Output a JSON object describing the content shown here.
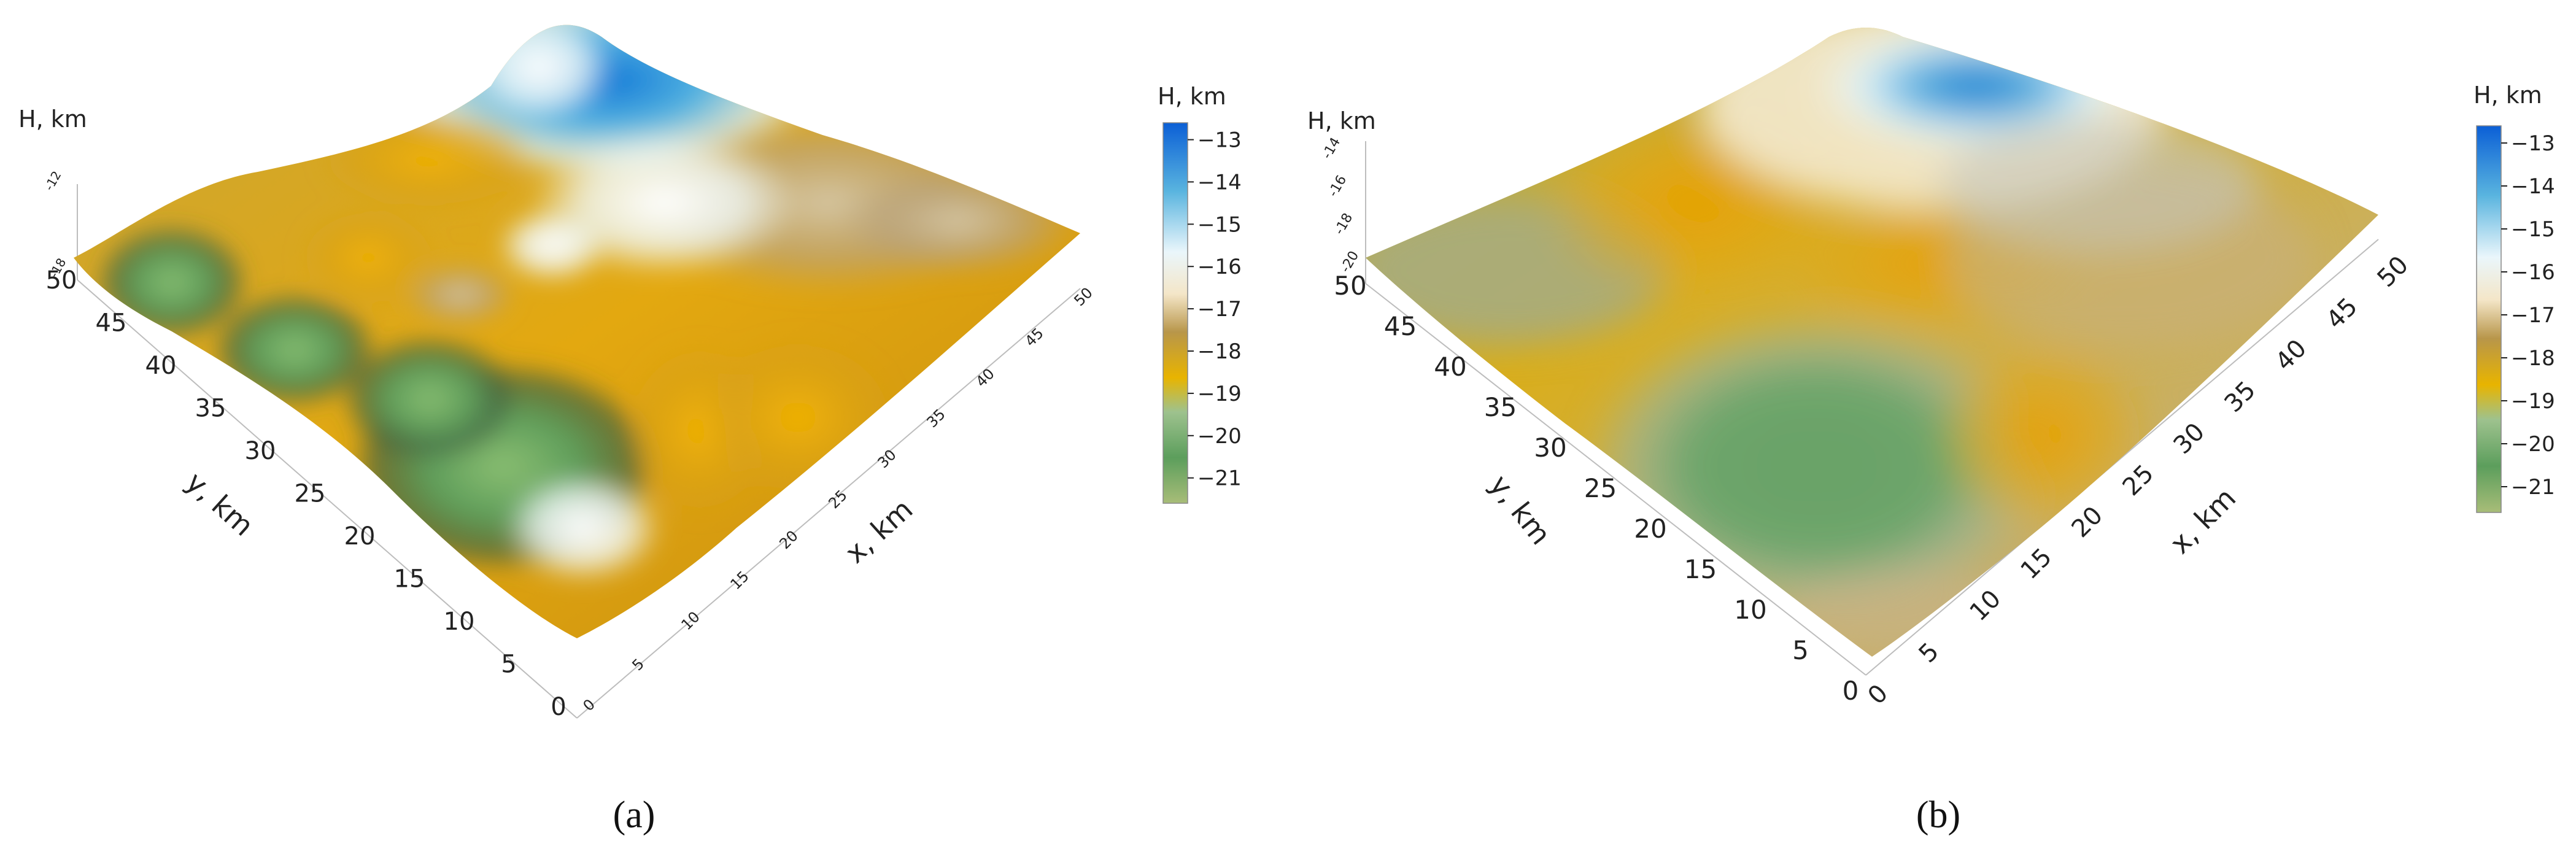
{
  "chart_data": [
    {
      "type": "surface",
      "panel_label": "(a)",
      "zlabel": "H, km",
      "xlabel": "x, km",
      "ylabel": "y, km",
      "x_ticks": [
        "0",
        "5",
        "10",
        "15",
        "20",
        "25",
        "30",
        "35",
        "40",
        "45",
        "50"
      ],
      "y_ticks": [
        "0",
        "5",
        "10",
        "15",
        "20",
        "25",
        "30",
        "35",
        "40",
        "45",
        "50"
      ],
      "z_ticks": [
        "-18",
        "-12"
      ],
      "colorbar": {
        "label": "H, km",
        "ticks": [
          "-13",
          "-14",
          "-15",
          "-16",
          "-17",
          "-18",
          "-19",
          "-20",
          "-21"
        ],
        "range": [
          -21.6,
          -12.6
        ]
      },
      "colormap": [
        "#a8bd78",
        "#5c9e5c",
        "#9ec28e",
        "#e8b400",
        "#b8964a",
        "#f4e6c8",
        "#eaf6fb",
        "#59b4df",
        "#0b5fd6"
      ]
    },
    {
      "type": "surface",
      "panel_label": "(b)",
      "zlabel": "H, km",
      "xlabel": "x, km",
      "ylabel": "y, km",
      "x_ticks": [
        "0",
        "5",
        "10",
        "15",
        "20",
        "25",
        "30",
        "35",
        "40",
        "45",
        "50"
      ],
      "y_ticks": [
        "0",
        "5",
        "10",
        "15",
        "20",
        "25",
        "30",
        "35",
        "40",
        "45",
        "50"
      ],
      "z_ticks": [
        "-20",
        "-18",
        "-16",
        "-14"
      ],
      "colorbar": {
        "label": "H, km",
        "ticks": [
          "-13",
          "-14",
          "-15",
          "-16",
          "-17",
          "-18",
          "-19",
          "-20",
          "-21"
        ],
        "range": [
          -21.6,
          -12.6
        ]
      },
      "colormap": [
        "#a8bd78",
        "#5c9e5c",
        "#9ec28e",
        "#e8b400",
        "#b8964a",
        "#f4e6c8",
        "#eaf6fb",
        "#59b4df",
        "#0b5fd6"
      ]
    }
  ]
}
